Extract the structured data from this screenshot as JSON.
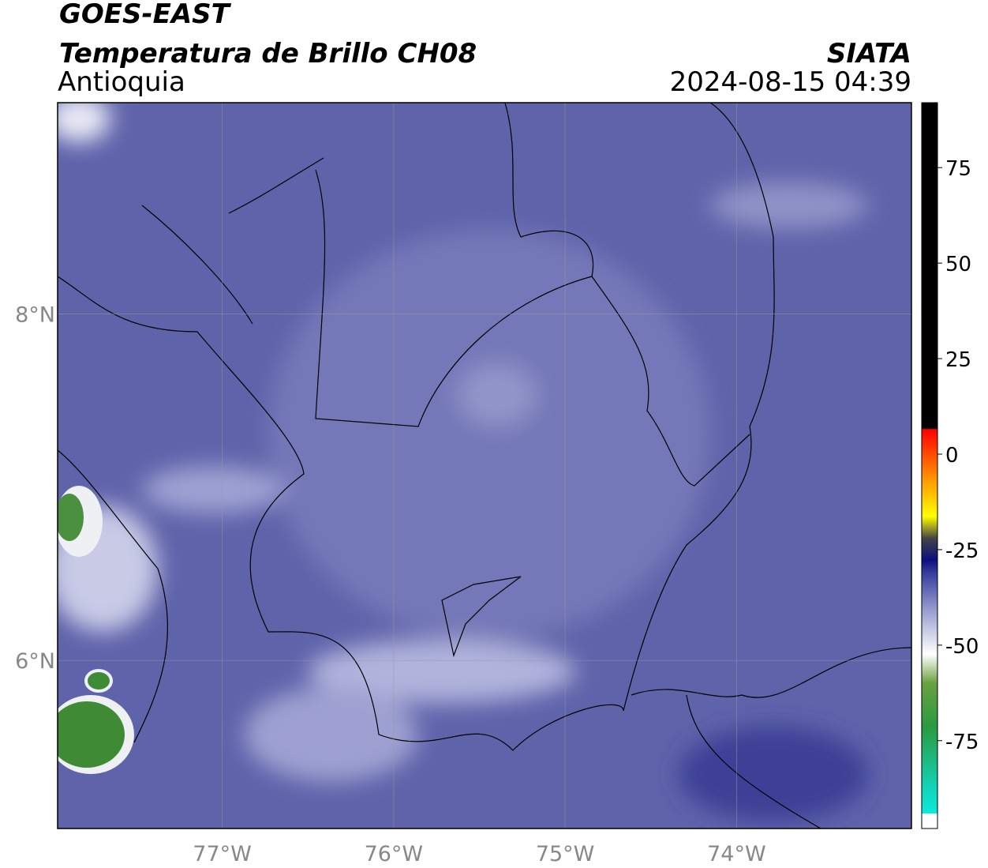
{
  "header": {
    "satellite": "GOES-EAST",
    "product": "Temperatura de Brillo CH08",
    "region": "Antioquia",
    "source": "SIATA",
    "datetime": "2024-08-15 04:39"
  },
  "map": {
    "xlim": [
      -77.96,
      -72.98
    ],
    "ylim": [
      5.03,
      9.22
    ],
    "xticks": [
      {
        "value": -77,
        "label": "77°W"
      },
      {
        "value": -76,
        "label": "76°W"
      },
      {
        "value": -75,
        "label": "75°W"
      },
      {
        "value": -74,
        "label": "74°W"
      }
    ],
    "yticks": [
      {
        "value": 6,
        "label": "6°N"
      },
      {
        "value": 8,
        "label": "8°N"
      }
    ],
    "grid": true
  },
  "colorbar": {
    "lim": [
      -98,
      92
    ],
    "ticks": [
      75,
      50,
      25,
      0,
      -25,
      -50,
      -75
    ]
  }
}
